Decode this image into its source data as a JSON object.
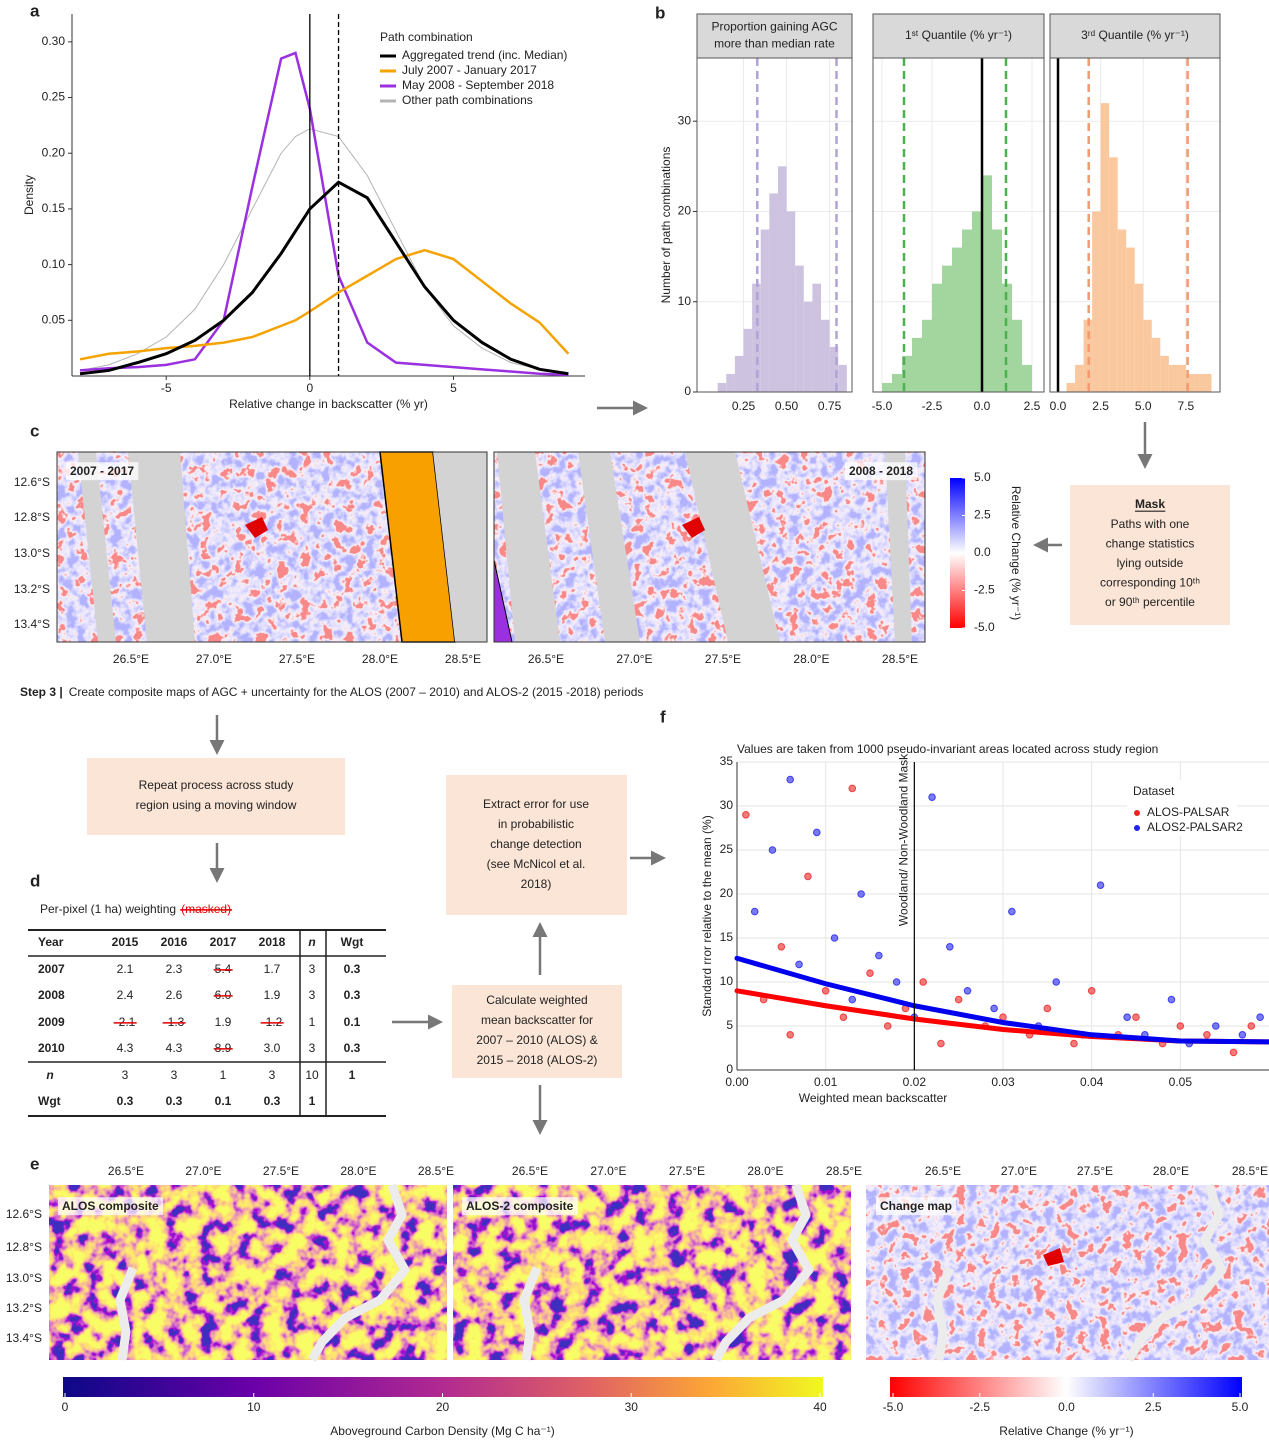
{
  "panel_labels": [
    "a",
    "b",
    "c",
    "d",
    "e",
    "f"
  ],
  "chart_data": [
    {
      "type": "line",
      "xlabel": "Relative change in backscatter (% yr)",
      "ylabel": "Density",
      "legend_title": "Path combination",
      "legend": "top-right",
      "xlim": [
        -8.28,
        9.58
      ],
      "ylim": [
        0,
        0.325
      ],
      "xticks": [
        -5,
        0,
        5
      ],
      "yticks": [
        0.05,
        {
          "value": 0.1,
          "label": "0.10"
        },
        0.15,
        {
          "value": 0.2,
          "label": "0.20"
        },
        0.25,
        {
          "value": 0.3,
          "label": "0.30"
        }
      ],
      "vlines": [
        {
          "value": 0,
          "style": "solid"
        },
        {
          "value": 1,
          "style": "dashed"
        }
      ],
      "x": [
        -8,
        -7,
        -6,
        -5,
        -4,
        -3,
        -2,
        -1,
        -0.5,
        0,
        1,
        2,
        3,
        4,
        5,
        6,
        7,
        8,
        9
      ],
      "series": [
        {
          "name": "Aggregated trend (inc. Median)",
          "color": "#000000",
          "width": 3,
          "values": [
            0.002,
            0.005,
            0.012,
            0.02,
            0.032,
            0.05,
            0.075,
            0.11,
            0.13,
            0.15,
            0.174,
            0.16,
            0.12,
            0.08,
            0.05,
            0.03,
            0.015,
            0.006,
            0.002
          ]
        },
        {
          "name": "July 2007 - January 2017",
          "color": "#f5a300",
          "width": 2.5,
          "values": [
            0.015,
            0.02,
            0.022,
            0.025,
            0.027,
            0.03,
            0.035,
            0.045,
            0.05,
            0.058,
            0.075,
            0.09,
            0.105,
            0.113,
            0.105,
            0.085,
            0.065,
            0.048,
            0.02
          ]
        },
        {
          "name": "May 2008 - September 2018",
          "color": "#9b30e0",
          "width": 2.5,
          "values": [
            0.005,
            0.007,
            0.008,
            0.01,
            0.015,
            0.05,
            0.17,
            0.285,
            0.29,
            0.24,
            0.09,
            0.03,
            0.012,
            0.01,
            0.008,
            0.006,
            0.004,
            0.002,
            0.001
          ]
        },
        {
          "name": "Other path combinations",
          "color": "#b3b3b3",
          "width": 1,
          "values": [
            0.005,
            0.01,
            0.02,
            0.035,
            0.06,
            0.1,
            0.15,
            0.2,
            0.215,
            0.222,
            0.215,
            0.18,
            0.13,
            0.08,
            0.045,
            0.025,
            0.012,
            0.006,
            0.002
          ]
        }
      ]
    },
    {
      "type": "histogram",
      "ylabel": "Number of path combinations",
      "ylim": [
        0,
        37
      ],
      "yticks": [
        0,
        10,
        20,
        30
      ],
      "grid": true,
      "facets": [
        {
          "title_lines": [
            "Proportion gaining AGC",
            "more than median rate"
          ],
          "color": "#cdc2e0",
          "line_color": "#b0a3d6",
          "xlim": [
            -0.02,
            0.88
          ],
          "xticks": [
            0.25,
            {
              "value": 0.5,
              "label": "0.50"
            },
            0.75
          ],
          "bins": [
            0.1,
            0.15,
            0.2,
            0.25,
            0.3,
            0.35,
            0.4,
            0.45,
            0.5,
            0.55,
            0.6,
            0.65,
            0.7,
            0.75,
            0.8,
            0.85
          ],
          "values": [
            1,
            2,
            4,
            7,
            12,
            18,
            22,
            25,
            20,
            14,
            10,
            12,
            8,
            5,
            3
          ],
          "vlines": [
            {
              "value": 0.33,
              "style": "dashed"
            },
            {
              "value": 0.79,
              "style": "dashed"
            }
          ]
        },
        {
          "title_lines": [
            "1ˢᵗ Quantile (% yr⁻¹)"
          ],
          "color": "#a3d69e",
          "line_color": "#4caf50",
          "xlim": [
            -5.45,
            3.1
          ],
          "xticks": [
            {
              "value": -5,
              "label": "-5.0"
            },
            -2.5,
            {
              "value": 0,
              "label": "0.0"
            },
            2.5
          ],
          "bins": [
            -5,
            -4.5,
            -4,
            -3.5,
            -3,
            -2.5,
            -2,
            -1.5,
            -1,
            -0.5,
            0,
            0.5,
            1,
            1.5,
            2,
            2.5
          ],
          "values": [
            1,
            2,
            4,
            6,
            8,
            12,
            14,
            16,
            18,
            20,
            24,
            18,
            12,
            8,
            3
          ],
          "vlines": [
            {
              "value": -3.9,
              "style": "dashed"
            },
            {
              "value": 0,
              "style": "solid"
            },
            {
              "value": 1.2,
              "style": "dashed"
            }
          ]
        },
        {
          "title_lines": [
            "3ʳᵈ Quantile (% yr⁻¹)"
          ],
          "color": "#fac89e",
          "line_color": "#f49a70",
          "xlim": [
            -0.47,
            9.5
          ],
          "xticks": [
            {
              "value": 0,
              "label": "0.0"
            },
            2.5,
            {
              "value": 5,
              "label": "5.0"
            },
            7.5
          ],
          "bins": [
            0,
            0.5,
            1,
            1.5,
            2,
            2.5,
            3,
            3.5,
            4,
            4.5,
            5,
            5.5,
            6,
            6.5,
            7,
            7.5,
            8,
            8.5,
            9
          ],
          "values": [
            0,
            1,
            3,
            8,
            20,
            32,
            26,
            18,
            16,
            12,
            8,
            6,
            4,
            3,
            3,
            2,
            2,
            2
          ],
          "vlines": [
            {
              "value": 0,
              "style": "solid"
            },
            {
              "value": 1.8,
              "style": "dashed"
            },
            {
              "value": 7.6,
              "style": "dashed"
            }
          ]
        }
      ]
    },
    {
      "type": "scatter",
      "title": "Values are taken from 1000 pseudo-invariant areas located across study region",
      "xlabel": "Weighted mean backscatter",
      "ylabel": "Standard rror relative to the mean (%)",
      "legend_title": "Dataset",
      "legend": "top-right",
      "grid": true,
      "xlim": [
        0,
        0.06
      ],
      "ylim": [
        0,
        35
      ],
      "xticks": [
        {
          "value": 0,
          "label": "0.00"
        },
        0.01,
        0.02,
        0.03,
        0.04,
        0.05
      ],
      "yticks": [
        0,
        5,
        10,
        15,
        20,
        25,
        30,
        35
      ],
      "vline": {
        "value": 0.02,
        "label": "Woodland/ Non-Woodland Mask"
      },
      "series": [
        {
          "name": "ALOS-PALSAR",
          "color": "#ee2222",
          "x": [
            0.001,
            0.003,
            0.005,
            0.006,
            0.008,
            0.01,
            0.012,
            0.013,
            0.015,
            0.017,
            0.019,
            0.021,
            0.023,
            0.025,
            0.028,
            0.03,
            0.033,
            0.035,
            0.038,
            0.04,
            0.043,
            0.045,
            0.048,
            0.05,
            0.053,
            0.056,
            0.058
          ],
          "values": [
            29,
            8,
            14,
            4,
            22,
            9,
            6,
            32,
            11,
            5,
            7,
            10,
            3,
            8,
            5,
            6,
            4,
            7,
            3,
            9,
            4,
            6,
            3,
            5,
            4,
            2,
            5
          ]
        },
        {
          "name": "ALOS2-PALSAR2",
          "color": "#2222ee",
          "x": [
            0.002,
            0.004,
            0.006,
            0.007,
            0.009,
            0.011,
            0.013,
            0.014,
            0.016,
            0.018,
            0.02,
            0.022,
            0.024,
            0.026,
            0.029,
            0.031,
            0.034,
            0.036,
            0.039,
            0.041,
            0.044,
            0.046,
            0.049,
            0.051,
            0.054,
            0.057,
            0.059
          ],
          "values": [
            18,
            25,
            33,
            12,
            27,
            15,
            8,
            20,
            13,
            10,
            6,
            31,
            14,
            9,
            7,
            18,
            5,
            10,
            4,
            21,
            6,
            4,
            8,
            3,
            5,
            4,
            6
          ]
        }
      ],
      "fits": [
        {
          "color": "#ff0000",
          "x": [
            0,
            0.01,
            0.02,
            0.03,
            0.04,
            0.05,
            0.06
          ],
          "values": [
            9,
            7.3,
            5.8,
            4.6,
            3.8,
            3.3,
            3.2
          ]
        },
        {
          "color": "#0000ee",
          "x": [
            0,
            0.01,
            0.02,
            0.03,
            0.04,
            0.05,
            0.06
          ],
          "values": [
            12.7,
            9.8,
            7.3,
            5.4,
            4,
            3.3,
            3.2
          ]
        }
      ]
    }
  ],
  "maps": {
    "c": {
      "labels": [
        "2007 - 2017",
        "2008 - 2018"
      ],
      "lon_ticks": [
        "26.5°E",
        "27.0°E",
        "27.5°E",
        "28.0°E",
        "28.5°E"
      ],
      "lat_ticks": [
        "12.6°S",
        "12.8°S",
        "13.0°S",
        "13.2°S",
        "13.4°S"
      ],
      "colorbar": {
        "title": "Relative Change (% yr⁻¹)",
        "lim": [
          -5,
          5
        ],
        "ticks": [
          {
            "value": 5,
            "label": "5.0"
          },
          2.5,
          {
            "value": 0,
            "label": "0.0"
          },
          -2.5,
          {
            "value": -5,
            "label": "-5.0"
          }
        ]
      }
    },
    "e": {
      "labels": [
        "ALOS composite",
        "ALOS-2 composite",
        "Change map"
      ],
      "lon_ticks": [
        "26.5°E",
        "27.0°E",
        "27.5°E",
        "28.0°E",
        "28.5°E"
      ],
      "lat_ticks": [
        "12.6°S",
        "12.8°S",
        "13.0°S",
        "13.2°S",
        "13.4°S"
      ],
      "carbon_colorbar": {
        "title": "Aboveground Carbon Density (Mg C ha⁻¹)",
        "lim": [
          0,
          40
        ],
        "ticks": [
          0,
          10,
          20,
          30,
          40
        ]
      },
      "change_colorbar": {
        "title": "Relative Change (% yr⁻¹)",
        "lim": [
          -5,
          5
        ],
        "ticks": [
          {
            "value": -5,
            "label": "-5.0"
          },
          -2.5,
          {
            "value": 0,
            "label": "0.0"
          },
          2.5,
          {
            "value": 5,
            "label": "5.0"
          }
        ]
      }
    }
  },
  "diagram": {
    "mask_title": "Mask",
    "mask_lines": [
      "Paths with one",
      "change statistics",
      "lying outside",
      "corresponding 10ᵗʰ",
      "or 90ᵗʰ percentile"
    ],
    "step_label": "Step 3 |",
    "step_text": "Create composite maps of AGC + uncertainty for the ALOS (2007 – 2010) and ALOS-2 (2015 -2018) periods",
    "repeat_lines": [
      "Repeat process across study",
      "region using a moving window"
    ],
    "extract_lines": [
      "Extract error for use",
      "in probabilistic",
      "change detection",
      "(see McNicol et al.",
      "2018)"
    ],
    "calculate_lines": [
      "Calculate weighted",
      "mean backscatter for",
      "2007 – 2010 (ALOS) &",
      "2015 – 2018 (ALOS-2)"
    ]
  },
  "table": {
    "title": "Per-pixel (1 ha) weighting",
    "title_note": "(masked)",
    "header": [
      "Year",
      "2015",
      "2016",
      "2017",
      "2018",
      "n",
      "Wgt"
    ],
    "rows": [
      [
        "2007",
        "2.1",
        "2.3",
        "5.4",
        "1.7",
        "3",
        "0.3"
      ],
      [
        "2008",
        "2.4",
        "2.6",
        "6.0",
        "1.9",
        "3",
        "0.3"
      ],
      [
        "2009",
        "-2.1",
        "-1.3",
        "1.9",
        "-1.2",
        "1",
        "0.1"
      ],
      [
        "2010",
        "4.3",
        "4.3",
        "8.9",
        "3.0",
        "3",
        "0.3"
      ],
      [
        "n",
        "3",
        "3",
        "1",
        "3",
        "10",
        "1"
      ],
      [
        "Wgt",
        "0.3",
        "0.3",
        "0.1",
        "0.3",
        "1"
      ]
    ],
    "masked": [
      [
        false,
        false,
        false,
        true,
        false,
        false,
        false
      ],
      [
        false,
        false,
        false,
        true,
        false,
        false,
        false
      ],
      [
        false,
        true,
        true,
        false,
        true,
        false,
        false
      ],
      [
        false,
        false,
        false,
        true,
        false,
        false,
        false
      ],
      [
        false,
        false,
        false,
        false,
        false,
        false,
        false
      ],
      [
        false,
        false,
        false,
        false,
        false,
        false
      ]
    ]
  }
}
